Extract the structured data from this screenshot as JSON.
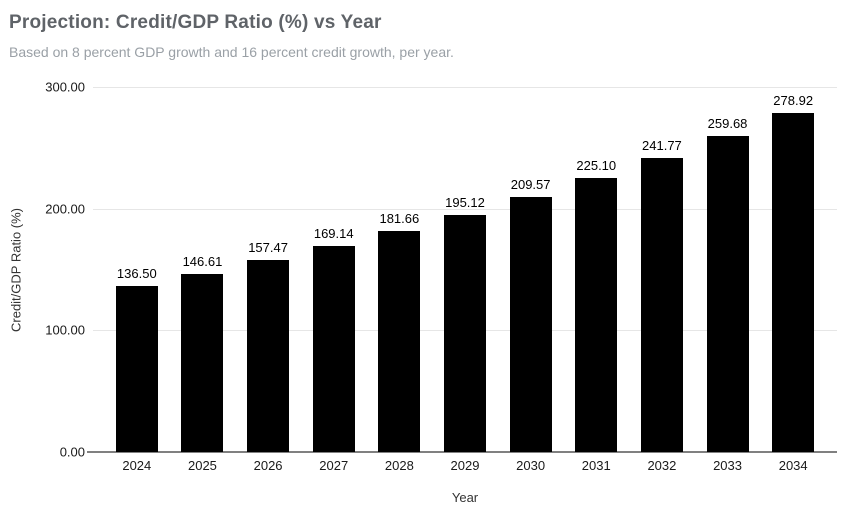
{
  "chart_data": {
    "type": "bar",
    "title": "Projection: Credit/GDP Ratio (%) vs Year",
    "subtitle": "Based on 8 percent GDP growth and 16 percent credit growth, per year.",
    "xlabel": "Year",
    "ylabel": "Credit/GDP Ratio (%)",
    "categories": [
      "2024",
      "2025",
      "2026",
      "2027",
      "2028",
      "2029",
      "2030",
      "2031",
      "2032",
      "2033",
      "2034"
    ],
    "values": [
      136.5,
      146.61,
      157.47,
      169.14,
      181.66,
      195.12,
      209.57,
      225.1,
      241.77,
      259.68,
      278.92
    ],
    "value_labels": [
      "136.50",
      "146.61",
      "157.47",
      "169.14",
      "181.66",
      "195.12",
      "209.57",
      "225.10",
      "241.77",
      "259.68",
      "278.92"
    ],
    "y_ticks": [
      {
        "value": 0,
        "label": "0.00"
      },
      {
        "value": 100,
        "label": "100.00"
      },
      {
        "value": 200,
        "label": "200.00"
      },
      {
        "value": 300,
        "label": "300.00"
      }
    ],
    "ylim": [
      0,
      300
    ],
    "grid": true,
    "legend_position": "none",
    "colors": {
      "bar": "#000000",
      "gridline": "#e6e6e6",
      "axis_line": "#808080",
      "title": "#5f6368",
      "subtitle": "#9aa0a6",
      "tick_label": "#1a1a1a",
      "data_label": "#000000",
      "axis_title": "#333333",
      "background": "#ffffff"
    }
  }
}
